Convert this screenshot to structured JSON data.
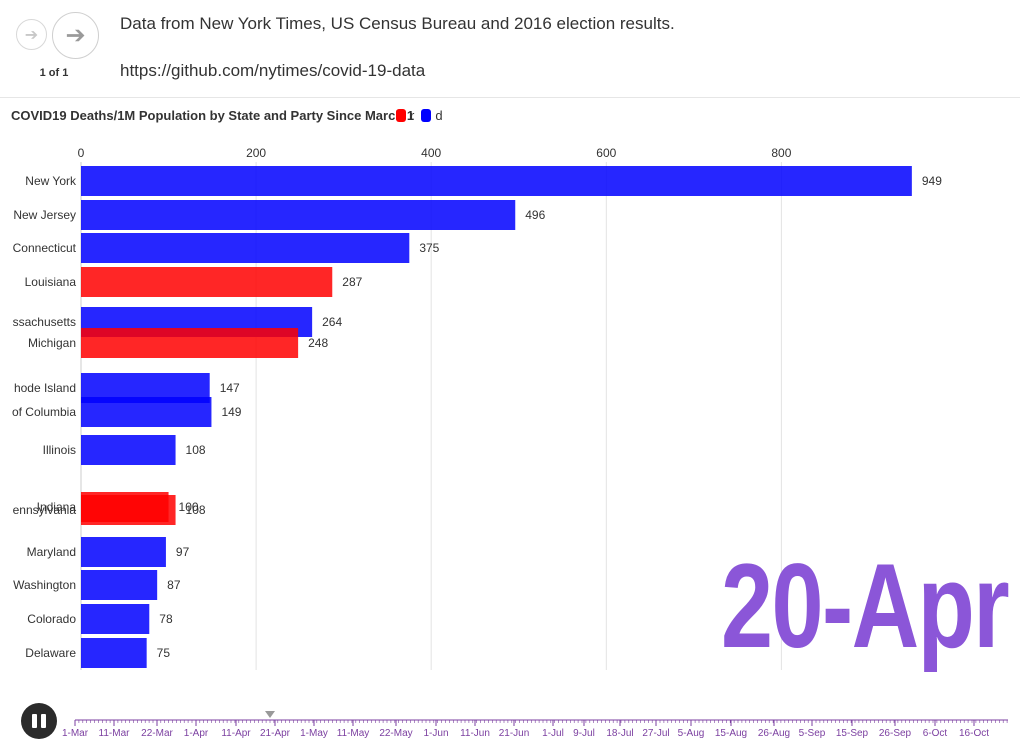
{
  "header": {
    "back_icon": "arrow-left-icon",
    "forward_icon": "arrow-right-icon",
    "page_indicator": "1 of 1",
    "source": "Data from New York Times, US Census Bureau and 2016 election results.",
    "url": "https://github.com/nytimes/covid-19-data"
  },
  "legend": [
    {
      "label": "r",
      "color": "#ff0000"
    },
    {
      "label": "d",
      "color": "#0000ff"
    }
  ],
  "current_date": "20-Apr",
  "player": {
    "state": "playing",
    "icon": "pause-icon"
  },
  "timeline": {
    "labels": [
      "1-Mar",
      "11-Mar",
      "22-Mar",
      "1-Apr",
      "11-Apr",
      "21-Apr",
      "1-May",
      "11-May",
      "22-May",
      "1-Jun",
      "11-Jun",
      "21-Jun",
      "1-Jul",
      "9-Jul",
      "18-Jul",
      "27-Jul",
      "5-Aug",
      "15-Aug",
      "26-Aug",
      "5-Sep",
      "15-Sep",
      "26-Sep",
      "6-Oct",
      "16-Oct"
    ],
    "current": "21-Apr",
    "color": "#7b3fa0"
  },
  "chart_data": {
    "type": "bar",
    "orientation": "horizontal",
    "title": "COVID19 Deaths/1M Population by State and Party Since March 1",
    "xlim": [
      0,
      1000
    ],
    "xticks": [
      0,
      200,
      400,
      600,
      800
    ],
    "grid": true,
    "legend_position": "top",
    "categories": [
      "New York",
      "New Jersey",
      "Connecticut",
      "Louisiana",
      "Massachusetts",
      "Michigan",
      "Rhode Island",
      "District of Columbia",
      "Illinois",
      "Indiana",
      "Pennsylvania",
      "Maryland",
      "Washington",
      "Colorado",
      "Delaware"
    ],
    "visible_labels": [
      "New York",
      "New Jersey",
      "Connecticut",
      "Louisiana",
      "ssachusetts",
      "Michigan",
      "hode Island",
      "of Columbia",
      "Illinois",
      "Indiana",
      "ennsylvania",
      "Maryland",
      "Washington",
      "Colorado",
      "Delaware"
    ],
    "values": [
      949,
      496,
      375,
      287,
      264,
      248,
      147,
      149,
      108,
      100,
      108,
      97,
      87,
      78,
      75
    ],
    "party": [
      "d",
      "d",
      "d",
      "r",
      "d",
      "r",
      "d",
      "d",
      "d",
      "r",
      "r",
      "d",
      "d",
      "d",
      "d"
    ]
  }
}
